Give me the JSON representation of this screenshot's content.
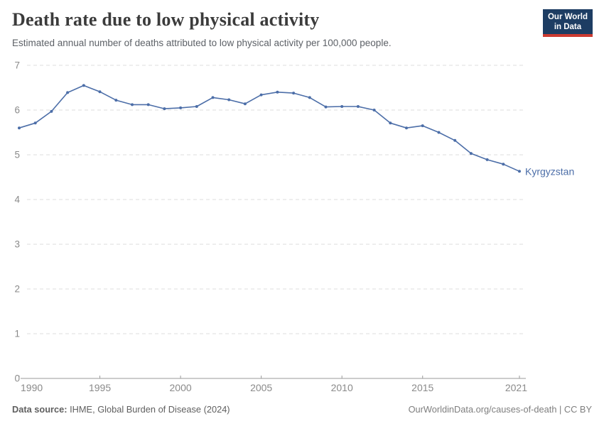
{
  "header": {
    "title": "Death rate due to low physical activity",
    "subtitle": "Estimated annual number of deaths attributed to low physical activity per 100,000 people.",
    "logo": {
      "line1": "Our World",
      "line2": "in Data"
    }
  },
  "chart_data": {
    "type": "line",
    "title": "Death rate due to low physical activity",
    "entity_label": "Kyrgyzstan",
    "x": [
      1990,
      1991,
      1992,
      1993,
      1994,
      1995,
      1996,
      1997,
      1998,
      1999,
      2000,
      2001,
      2002,
      2003,
      2004,
      2005,
      2006,
      2007,
      2008,
      2009,
      2010,
      2011,
      2012,
      2013,
      2014,
      2015,
      2016,
      2017,
      2018,
      2019,
      2020,
      2021
    ],
    "series": [
      {
        "name": "Kyrgyzstan",
        "values": [
          5.6,
          5.71,
          5.97,
          6.39,
          6.55,
          6.41,
          6.22,
          6.12,
          6.12,
          6.03,
          6.05,
          6.08,
          6.28,
          6.23,
          6.14,
          6.34,
          6.4,
          6.38,
          6.28,
          6.07,
          6.08,
          6.08,
          6.0,
          5.71,
          5.6,
          5.65,
          5.5,
          5.32,
          5.03,
          4.89,
          4.79,
          4.63
        ]
      }
    ],
    "ylim": [
      0,
      7
    ],
    "yticks": [
      0,
      1,
      2,
      3,
      4,
      5,
      6,
      7
    ],
    "xticks": [
      1990,
      1995,
      2000,
      2005,
      2010,
      2015,
      2021
    ],
    "grid": true,
    "grid_style": "dashed",
    "legend_position": "end-of-line",
    "xlabel": "",
    "ylabel": ""
  },
  "footer": {
    "source_label": "Data source:",
    "source_text": "IHME, Global Burden of Disease (2024)",
    "right_text": "OurWorldinData.org/causes-of-death | CC BY"
  },
  "colors": {
    "line": "#4C6EA8",
    "grid": "#dcdcdc",
    "axis": "#9a9a9a",
    "tick_text": "#8a8a8a",
    "title": "#3b3b3b",
    "subtitle": "#5d6167",
    "footer_left": "#5f5f5f",
    "footer_right": "#7e7e7e",
    "logo_bg": "#1d3d63",
    "logo_accent": "#cc3b31"
  }
}
